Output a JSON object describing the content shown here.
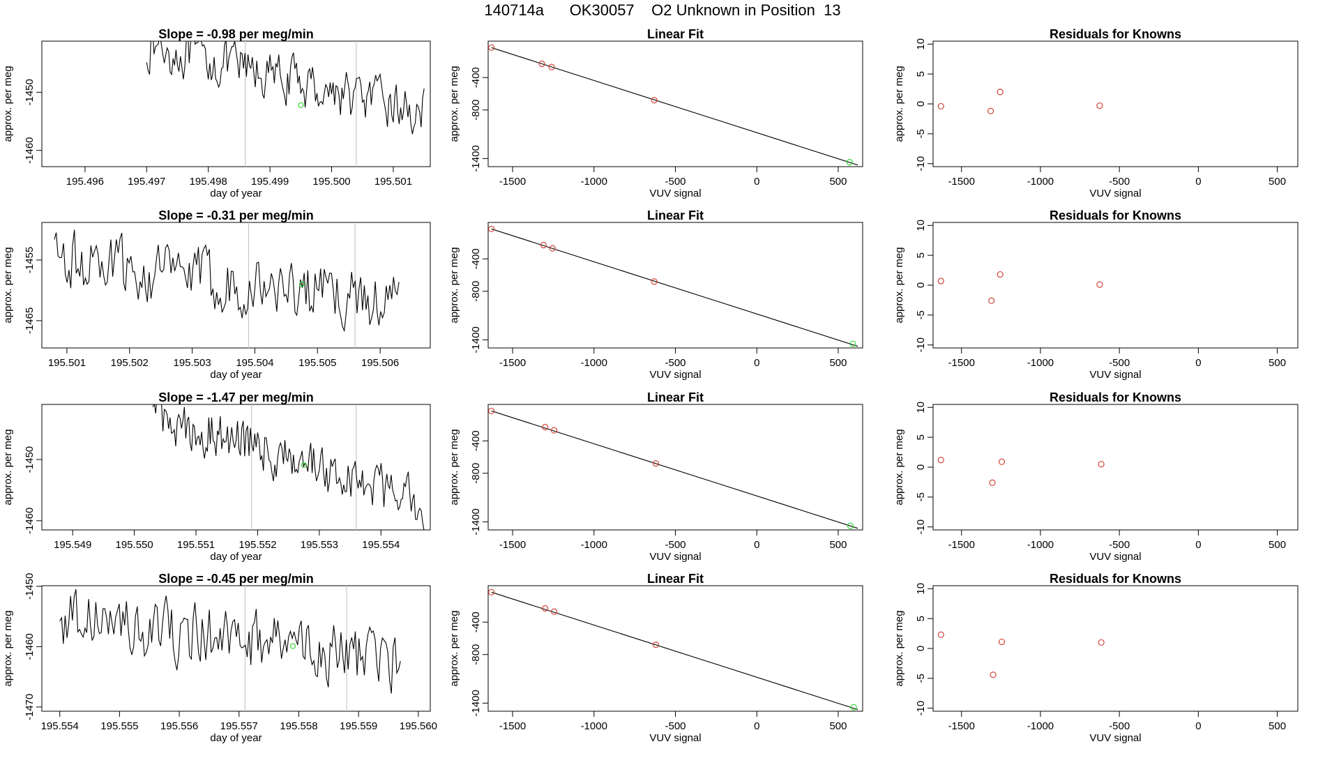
{
  "page_title": "140714a      OK30057    O2 Unknown in Position  13",
  "colors": {
    "line": "#000000",
    "known": "#d0453a",
    "unknown": "#36d636",
    "vline": "#c8c8c8",
    "box": "#000000"
  },
  "chart_data": [
    {
      "type": "line",
      "panel": "timeseries",
      "row": 1,
      "title": "Slope =  -0.98  per meg/min",
      "xlabel": "day of year",
      "ylabel": "approx. per meg",
      "xlim": [
        195.4953,
        195.5016
      ],
      "ylim": [
        -1462.8,
        -1441.2
      ],
      "xticks": [
        195.496,
        195.497,
        195.498,
        195.499,
        195.5,
        195.501
      ],
      "xtick_labels": [
        "195.496",
        "195.497",
        "195.498",
        "195.499",
        "195.500",
        "195.501"
      ],
      "yticks": [
        -1450,
        -1460
      ],
      "ytick_labels": [
        "-1450",
        "-1460"
      ],
      "vlines": [
        195.4986,
        195.5004
      ],
      "marker": {
        "x": 195.4995,
        "y": -1452.2
      },
      "x_start": 195.497,
      "x_end": 195.5015,
      "trend_start": -1442,
      "trend_end": -1453.6,
      "noise": 2.6,
      "series": [
        {
          "name": "signal",
          "values": []
        }
      ]
    },
    {
      "type": "line",
      "panel": "timeseries",
      "row": 2,
      "title": "Slope =  -0.31  per meg/min",
      "xlabel": "day of year",
      "ylabel": "approx. per meg",
      "xlim": [
        195.5006,
        195.5068
      ],
      "ylim": [
        -1469.5,
        -1448.8
      ],
      "xticks": [
        195.501,
        195.502,
        195.503,
        195.504,
        195.505,
        195.506
      ],
      "xtick_labels": [
        "195.501",
        "195.502",
        "195.503",
        "195.504",
        "195.505",
        "195.506"
      ],
      "yticks": [
        -1455,
        -1465
      ],
      "ytick_labels": [
        "-1455",
        "-1465"
      ],
      "vlines": [
        195.5039,
        195.5056
      ],
      "marker": {
        "x": 195.50475,
        "y": -1459
      },
      "x_start": 195.5008,
      "x_end": 195.5063,
      "trend_start": -1455,
      "trend_end": -1462,
      "noise": 3.2,
      "series": [
        {
          "name": "signal",
          "values": []
        }
      ]
    },
    {
      "type": "line",
      "panel": "timeseries",
      "row": 3,
      "title": "Slope =  -1.47  per meg/min",
      "xlabel": "day of year",
      "ylabel": "approx. per meg",
      "xlim": [
        195.5485,
        195.5548
      ],
      "ylim": [
        -1461.5,
        -1441.0
      ],
      "xticks": [
        195.549,
        195.55,
        195.551,
        195.552,
        195.553,
        195.554
      ],
      "xtick_labels": [
        "195.549",
        "195.550",
        "195.551",
        "195.552",
        "195.553",
        "195.554"
      ],
      "yticks": [
        -1450,
        -1460
      ],
      "ytick_labels": [
        "-1450",
        "-1460"
      ],
      "vlines": [
        195.5519,
        195.5536
      ],
      "marker": {
        "x": 195.55275,
        "y": -1450.9
      },
      "x_start": 195.5503,
      "x_end": 195.5547,
      "trend_start": -1442.5,
      "trend_end": -1457,
      "noise": 2.6,
      "series": [
        {
          "name": "signal",
          "values": []
        }
      ]
    },
    {
      "type": "line",
      "panel": "timeseries",
      "row": 4,
      "title": "Slope =  -0.45  per meg/min",
      "xlabel": "day of year",
      "ylabel": "approx. per meg",
      "xlim": [
        195.5537,
        195.5602
      ],
      "ylim": [
        -1470.7,
        -1449.9
      ],
      "xticks": [
        195.554,
        195.555,
        195.556,
        195.557,
        195.558,
        195.559,
        195.56
      ],
      "xtick_labels": [
        "195.554",
        "195.555",
        "195.556",
        "195.557",
        "195.558",
        "195.559",
        "195.560"
      ],
      "yticks": [
        -1450,
        -1460,
        -1470
      ],
      "ytick_labels": [
        "-1450",
        "-1460",
        "-1470"
      ],
      "vlines": [
        195.5571,
        195.5588
      ],
      "marker": {
        "x": 195.5579,
        "y": -1459.9
      },
      "x_start": 195.554,
      "x_end": 195.5597,
      "trend_start": -1455,
      "trend_end": -1463,
      "noise": 3.3,
      "series": [
        {
          "name": "signal",
          "values": []
        }
      ]
    },
    {
      "type": "scatter",
      "panel": "fit",
      "row": 1,
      "title": "Linear Fit",
      "xlabel": "VUV signal",
      "ylabel": "approx. per meg",
      "xlim": [
        -1650,
        650
      ],
      "ylim": [
        -1500,
        50
      ],
      "xticks": [
        -1500,
        -1000,
        -500,
        0,
        500
      ],
      "yticks": [
        -400,
        -800,
        -1400
      ],
      "line": {
        "x0": -1630,
        "y0": -30,
        "x1": 620,
        "y1": -1480
      },
      "knowns": [
        {
          "x": -1630,
          "y": -30
        },
        {
          "x": -1320,
          "y": -230
        },
        {
          "x": -1260,
          "y": -270
        },
        {
          "x": -630,
          "y": -680
        }
      ],
      "unknown": {
        "x": 570,
        "y": -1445
      }
    },
    {
      "type": "scatter",
      "panel": "fit",
      "row": 2,
      "title": "Linear Fit",
      "xlabel": "VUV signal",
      "ylabel": "approx. per meg",
      "xlim": [
        -1650,
        650
      ],
      "ylim": [
        -1500,
        50
      ],
      "xticks": [
        -1500,
        -1000,
        -500,
        0,
        500
      ],
      "yticks": [
        -400,
        -800,
        -1400
      ],
      "line": {
        "x0": -1630,
        "y0": -30,
        "x1": 620,
        "y1": -1480
      },
      "knowns": [
        {
          "x": -1630,
          "y": -30
        },
        {
          "x": -1310,
          "y": -230
        },
        {
          "x": -1255,
          "y": -270
        },
        {
          "x": -630,
          "y": -680
        }
      ],
      "unknown": {
        "x": 590,
        "y": -1450
      }
    },
    {
      "type": "scatter",
      "panel": "fit",
      "row": 3,
      "title": "Linear Fit",
      "xlabel": "VUV signal",
      "ylabel": "approx. per meg",
      "xlim": [
        -1650,
        650
      ],
      "ylim": [
        -1500,
        50
      ],
      "xticks": [
        -1500,
        -1000,
        -500,
        0,
        500
      ],
      "yticks": [
        -400,
        -800,
        -1400
      ],
      "line": {
        "x0": -1630,
        "y0": -30,
        "x1": 620,
        "y1": -1480
      },
      "knowns": [
        {
          "x": -1630,
          "y": -30
        },
        {
          "x": -1300,
          "y": -230
        },
        {
          "x": -1245,
          "y": -270
        },
        {
          "x": -620,
          "y": -680
        }
      ],
      "unknown": {
        "x": 575,
        "y": -1450
      }
    },
    {
      "type": "scatter",
      "panel": "fit",
      "row": 4,
      "title": "Linear Fit",
      "xlabel": "VUV signal",
      "ylabel": "approx. per meg",
      "xlim": [
        -1650,
        650
      ],
      "ylim": [
        -1500,
        50
      ],
      "xticks": [
        -1500,
        -1000,
        -500,
        0,
        500
      ],
      "yticks": [
        -400,
        -800,
        -1400
      ],
      "line": {
        "x0": -1630,
        "y0": -30,
        "x1": 620,
        "y1": -1480
      },
      "knowns": [
        {
          "x": -1630,
          "y": -30
        },
        {
          "x": -1300,
          "y": -230
        },
        {
          "x": -1245,
          "y": -270
        },
        {
          "x": -620,
          "y": -680
        }
      ],
      "unknown": {
        "x": 595,
        "y": -1450
      }
    },
    {
      "type": "scatter",
      "panel": "residuals",
      "row": 1,
      "title": "Residuals for Knowns",
      "xlabel": "VUV signal",
      "ylabel": "approx. per meg",
      "xlim": [
        -1680,
        630
      ],
      "ylim": [
        -10.5,
        10.5
      ],
      "xticks": [
        -1500,
        -1000,
        -500,
        0,
        500
      ],
      "yticks": [
        10,
        5,
        0,
        -5,
        -10
      ],
      "points": [
        {
          "x": -1630,
          "y": -0.4
        },
        {
          "x": -1315,
          "y": -1.2
        },
        {
          "x": -1255,
          "y": 2.0
        },
        {
          "x": -625,
          "y": -0.3
        }
      ]
    },
    {
      "type": "scatter",
      "panel": "residuals",
      "row": 2,
      "title": "Residuals for Knowns",
      "xlabel": "VUV signal",
      "ylabel": "approx. per meg",
      "xlim": [
        -1680,
        630
      ],
      "ylim": [
        -10.5,
        10.5
      ],
      "xticks": [
        -1500,
        -1000,
        -500,
        0,
        500
      ],
      "yticks": [
        10,
        5,
        0,
        -5,
        -10
      ],
      "points": [
        {
          "x": -1630,
          "y": 0.7
        },
        {
          "x": -1310,
          "y": -2.6
        },
        {
          "x": -1255,
          "y": 1.8
        },
        {
          "x": -625,
          "y": 0.1
        }
      ]
    },
    {
      "type": "scatter",
      "panel": "residuals",
      "row": 3,
      "title": "Residuals for Knowns",
      "xlabel": "VUV signal",
      "ylabel": "approx. per meg",
      "xlim": [
        -1680,
        630
      ],
      "ylim": [
        -10.5,
        10.5
      ],
      "xticks": [
        -1500,
        -1000,
        -500,
        0,
        500
      ],
      "yticks": [
        10,
        5,
        0,
        -5,
        -10
      ],
      "points": [
        {
          "x": -1630,
          "y": 1.2
        },
        {
          "x": -1305,
          "y": -2.6
        },
        {
          "x": -1245,
          "y": 0.9
        },
        {
          "x": -615,
          "y": 0.5
        }
      ]
    },
    {
      "type": "scatter",
      "panel": "residuals",
      "row": 4,
      "title": "Residuals for Knowns",
      "xlabel": "VUV signal",
      "ylabel": "approx. per meg",
      "xlim": [
        -1680,
        630
      ],
      "ylim": [
        -10.5,
        10.5
      ],
      "xticks": [
        -1500,
        -1000,
        -500,
        0,
        500
      ],
      "yticks": [
        10,
        5,
        0,
        -5,
        -10
      ],
      "points": [
        {
          "x": -1630,
          "y": 2.3
        },
        {
          "x": -1300,
          "y": -4.4
        },
        {
          "x": -1245,
          "y": 1.1
        },
        {
          "x": -615,
          "y": 1.0
        }
      ]
    }
  ]
}
